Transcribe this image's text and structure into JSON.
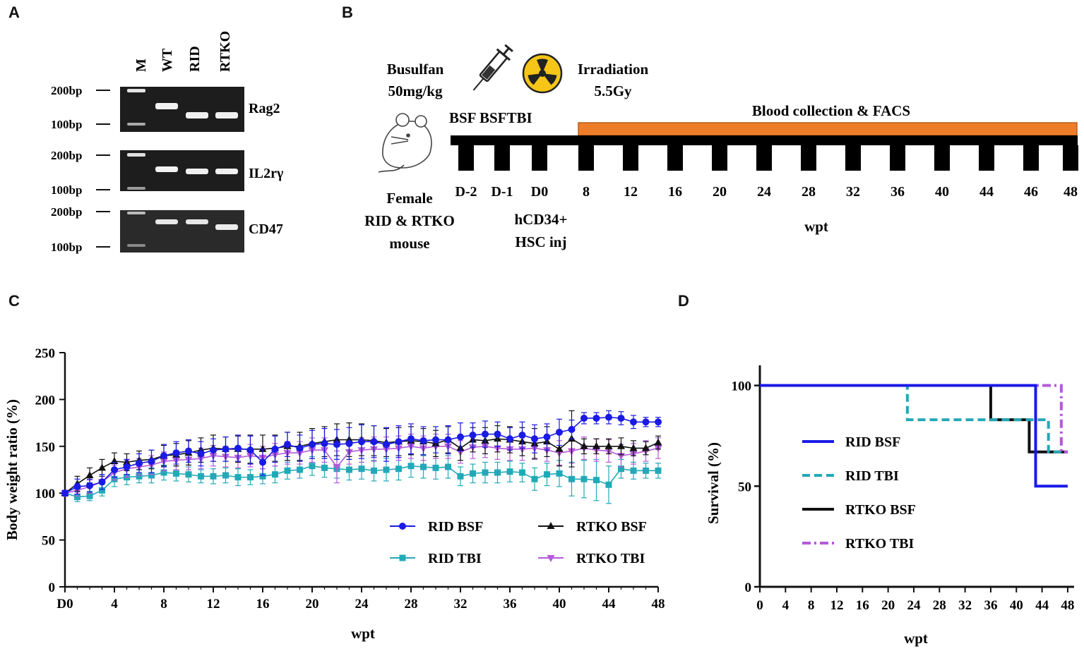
{
  "panels": {
    "a": "A",
    "b": "B",
    "c": "C",
    "d": "D"
  },
  "gel": {
    "lane_labels": [
      "M",
      "WT",
      "RID",
      "RTKO"
    ],
    "genes": [
      "Rag2",
      "IL2rγ",
      "CD47"
    ],
    "markers": {
      "upper": "200bp",
      "lower": "100bp"
    }
  },
  "scheme": {
    "busulfan": "Busulfan",
    "busulfan_dose": "50mg/kg",
    "irradiation": "Irradiation",
    "irradiation_dose": "5.5Gy",
    "blood": "Blood collection & FACS",
    "bsf": "BSF BSFTBI",
    "mouse_line1": "Female",
    "mouse_line2": "RID & RTKO",
    "mouse_line3": "mouse",
    "inj_line1": "hCD34+",
    "inj_line2": "HSC inj",
    "timepoints": [
      "D-2",
      "D-1",
      "D0",
      "8",
      "12",
      "16",
      "20",
      "24",
      "28",
      "32",
      "36",
      "40",
      "44",
      "46",
      "48"
    ],
    "axis_label": "wpt"
  },
  "colors": {
    "rid_bsf": "#1a1ae6",
    "rid_tbi": "#22a9b8",
    "rtko_bsf": "#111111",
    "rtko_tbi": "#b45ad9",
    "orange": "#ee7d2a"
  },
  "chart_data": [
    {
      "type": "line",
      "title": "",
      "xlabel": "wpt",
      "ylabel": "Body weight ratio (%)",
      "xlim": [
        0,
        48
      ],
      "ylim": [
        0,
        250
      ],
      "x_ticks": [
        "D0",
        "4",
        "8",
        "12",
        "16",
        "20",
        "24",
        "28",
        "32",
        "36",
        "40",
        "44",
        "48"
      ],
      "y_ticks": [
        "0",
        "50",
        "100",
        "150",
        "200",
        "250"
      ],
      "x": [
        0,
        1,
        2,
        3,
        4,
        5,
        6,
        7,
        8,
        9,
        10,
        11,
        12,
        13,
        14,
        15,
        16,
        17,
        18,
        19,
        20,
        21,
        22,
        23,
        24,
        25,
        26,
        27,
        28,
        29,
        30,
        31,
        32,
        33,
        34,
        35,
        36,
        37,
        38,
        39,
        40,
        41,
        42,
        43,
        44,
        45,
        46,
        47,
        48
      ],
      "series": [
        {
          "name": "RID BSF",
          "marker": "circle",
          "values": [
            100,
            107,
            108,
            112,
            125,
            128,
            132,
            134,
            140,
            143,
            145,
            142,
            146,
            147,
            148,
            146,
            133,
            147,
            152,
            148,
            152,
            153,
            152,
            153,
            155,
            155,
            152,
            155,
            158,
            156,
            157,
            157,
            160,
            162,
            163,
            163,
            158,
            162,
            158,
            160,
            165,
            168,
            180,
            180,
            181,
            180,
            176,
            176,
            176
          ],
          "errors": [
            3,
            8,
            7,
            8,
            8,
            8,
            10,
            12,
            12,
            12,
            12,
            13,
            12,
            13,
            14,
            15,
            14,
            14,
            13,
            14,
            15,
            16,
            16,
            17,
            18,
            17,
            18,
            17,
            16,
            15,
            14,
            15,
            15,
            13,
            14,
            13,
            12,
            14,
            15,
            14,
            14,
            10,
            6,
            6,
            7,
            7,
            7,
            5,
            5
          ]
        },
        {
          "name": "RID TBI",
          "marker": "square",
          "values": [
            100,
            96,
            97,
            103,
            115,
            117,
            118,
            119,
            122,
            121,
            120,
            118,
            118,
            119,
            117,
            117,
            118,
            120,
            124,
            125,
            129,
            127,
            126,
            125,
            126,
            124,
            125,
            126,
            129,
            128,
            127,
            128,
            118,
            121,
            122,
            122,
            123,
            122,
            115,
            120,
            121,
            115,
            115,
            114,
            109,
            126,
            124,
            124,
            124
          ],
          "errors": [
            3,
            5,
            5,
            6,
            8,
            8,
            7,
            8,
            8,
            8,
            8,
            7,
            8,
            8,
            9,
            8,
            8,
            9,
            9,
            9,
            10,
            10,
            10,
            11,
            11,
            11,
            12,
            12,
            12,
            12,
            12,
            12,
            10,
            10,
            11,
            11,
            11,
            10,
            12,
            12,
            14,
            18,
            20,
            22,
            20,
            10,
            9,
            8,
            8
          ]
        },
        {
          "name": "RTKO BSF",
          "marker": "triangle-up",
          "values": [
            100,
            110,
            119,
            127,
            134,
            133,
            135,
            136,
            140,
            141,
            143,
            146,
            148,
            147,
            147,
            147,
            147,
            148,
            150,
            150,
            153,
            155,
            157,
            157,
            157,
            156,
            154,
            155,
            156,
            155,
            153,
            157,
            148,
            157,
            156,
            158,
            157,
            155,
            153,
            155,
            147,
            158,
            150,
            150,
            150,
            150,
            148,
            148,
            154
          ],
          "errors": [
            3,
            8,
            8,
            9,
            9,
            9,
            10,
            10,
            11,
            12,
            13,
            13,
            14,
            13,
            14,
            15,
            15,
            14,
            15,
            15,
            16,
            16,
            17,
            18,
            17,
            16,
            15,
            15,
            15,
            14,
            14,
            14,
            13,
            13,
            14,
            14,
            14,
            15,
            16,
            16,
            18,
            30,
            8,
            8,
            8,
            9,
            8,
            7,
            7
          ]
        },
        {
          "name": "RTKO TBI",
          "marker": "triangle-down",
          "values": [
            100,
            103,
            107,
            112,
            122,
            126,
            128,
            130,
            134,
            135,
            136,
            137,
            140,
            139,
            138,
            140,
            138,
            141,
            143,
            143,
            146,
            146,
            128,
            144,
            146,
            147,
            147,
            148,
            150,
            148,
            150,
            150,
            144,
            149,
            150,
            148,
            147,
            147,
            148,
            146,
            143,
            145,
            148,
            146,
            145,
            140,
            142,
            145,
            148
          ],
          "errors": [
            3,
            6,
            7,
            8,
            8,
            9,
            9,
            10,
            10,
            10,
            11,
            11,
            11,
            11,
            11,
            12,
            12,
            12,
            12,
            12,
            13,
            13,
            17,
            13,
            13,
            13,
            13,
            13,
            13,
            13,
            13,
            13,
            12,
            12,
            12,
            12,
            12,
            12,
            12,
            12,
            13,
            13,
            12,
            12,
            12,
            12,
            11,
            11,
            11
          ]
        }
      ]
    },
    {
      "type": "line",
      "title": "",
      "xlabel": "wpt",
      "ylabel": "Survival (%)",
      "xlim": [
        0,
        49
      ],
      "ylim": [
        0,
        110
      ],
      "x_ticks": [
        "0",
        "4",
        "8",
        "12",
        "16",
        "20",
        "24",
        "28",
        "32",
        "36",
        "40",
        "44",
        "48"
      ],
      "y_ticks": [
        "0",
        "50",
        "100"
      ],
      "series": [
        {
          "name": "RID BSF",
          "style": "solid",
          "steps": [
            [
              0,
              100
            ],
            [
              43,
              100
            ],
            [
              43,
              50
            ],
            [
              48,
              50
            ]
          ]
        },
        {
          "name": "RID TBI",
          "style": "dashed",
          "steps": [
            [
              0,
              100
            ],
            [
              23,
              100
            ],
            [
              23,
              83
            ],
            [
              45,
              83
            ],
            [
              45,
              67
            ],
            [
              48,
              67
            ]
          ]
        },
        {
          "name": "RTKO BSF",
          "style": "solid",
          "steps": [
            [
              0,
              100
            ],
            [
              36,
              100
            ],
            [
              36,
              83
            ],
            [
              42,
              83
            ],
            [
              42,
              67
            ],
            [
              48,
              67
            ]
          ]
        },
        {
          "name": "RTKO TBI",
          "style": "dashdot",
          "steps": [
            [
              0,
              100
            ],
            [
              47,
              100
            ],
            [
              47,
              67
            ],
            [
              48,
              67
            ]
          ]
        }
      ]
    }
  ]
}
